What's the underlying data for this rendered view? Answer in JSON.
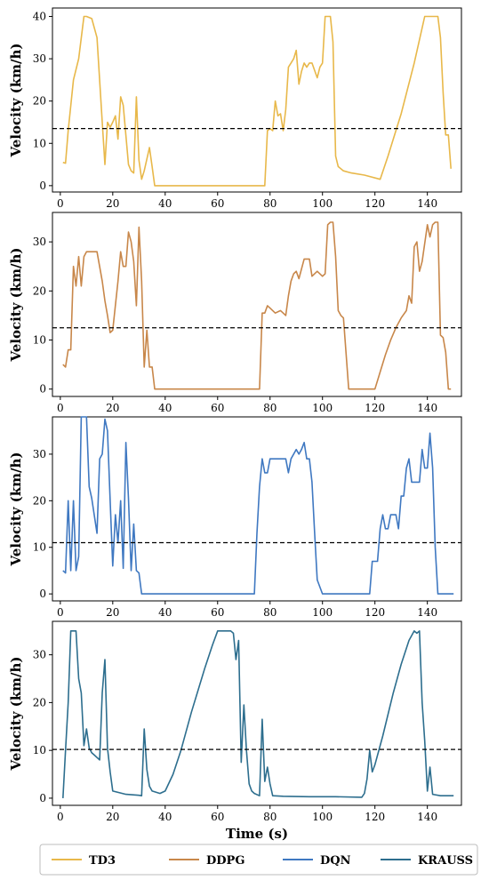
{
  "xlabel": "Time (s)",
  "legend": [
    {
      "name": "TD3",
      "color": "#e8b84a"
    },
    {
      "name": "DDPG",
      "color": "#c8874a"
    },
    {
      "name": "DQN",
      "color": "#3f78c1"
    },
    {
      "name": "KRAUSS",
      "color": "#2d6e8e"
    }
  ],
  "chart_data": [
    {
      "type": "line",
      "ylabel": "Velocity (km/h)",
      "color": "#e8b84a",
      "xlim": [
        -3,
        153
      ],
      "ylim": [
        -1.5,
        42
      ],
      "xticks": [
        0,
        20,
        40,
        60,
        80,
        100,
        120,
        140
      ],
      "yticks": [
        0,
        10,
        20,
        30,
        40
      ],
      "threshold": 13.5,
      "x": [
        1,
        2,
        3,
        5,
        7,
        9,
        10,
        12,
        14,
        16,
        17,
        18,
        19,
        20,
        21,
        22,
        23,
        24,
        26,
        27,
        28,
        29,
        30,
        31,
        32,
        34,
        35,
        36,
        40,
        50,
        60,
        70,
        78,
        79,
        80,
        81,
        82,
        83,
        84,
        85,
        86,
        87,
        88,
        89,
        90,
        91,
        92,
        93,
        94,
        95,
        96,
        98,
        99,
        100,
        101,
        102,
        103,
        104,
        105,
        106,
        108,
        111,
        116,
        122,
        125,
        130,
        135,
        139,
        141,
        143,
        144,
        145,
        146,
        147,
        148,
        149
      ],
      "y": [
        5.5,
        5.3,
        13,
        25,
        30,
        40,
        40,
        39.5,
        35,
        15,
        5,
        15,
        13.8,
        15,
        16.5,
        11,
        21,
        19,
        5,
        3.5,
        3,
        21,
        6,
        1.5,
        3.5,
        9,
        4.5,
        0,
        0,
        0,
        0,
        0,
        0,
        13,
        13.5,
        13,
        20,
        16.5,
        17,
        13,
        18,
        28,
        29,
        30,
        32,
        24,
        27,
        29,
        28,
        29,
        29,
        25.5,
        28,
        29,
        40,
        40,
        40,
        34,
        7,
        4.5,
        3.5,
        3,
        2.5,
        1.5,
        7,
        17,
        29,
        40,
        40,
        40,
        40,
        35,
        22,
        12,
        12,
        4
      ]
    },
    {
      "type": "line",
      "ylabel": "Velocity (km/h)",
      "color": "#c8874a",
      "xlim": [
        -3,
        153
      ],
      "ylim": [
        -1.5,
        36
      ],
      "xticks": [
        0,
        20,
        40,
        60,
        80,
        100,
        120,
        140
      ],
      "yticks": [
        0,
        10,
        20,
        30
      ],
      "threshold": 12.5,
      "x": [
        1,
        2,
        3,
        4,
        5,
        6,
        7,
        8,
        9,
        10,
        12,
        14,
        16,
        17,
        18,
        19,
        20,
        22,
        23,
        24,
        25,
        26,
        27,
        28,
        29,
        30,
        31,
        32,
        33,
        34,
        35,
        36,
        40,
        50,
        60,
        70,
        76,
        77,
        78,
        79,
        80,
        82,
        84,
        85,
        86,
        87,
        88,
        89,
        90,
        91,
        93,
        94,
        95,
        96,
        98,
        100,
        101,
        102,
        103,
        104,
        105,
        106,
        107,
        108,
        110,
        115,
        120,
        122,
        124,
        126,
        128,
        130,
        132,
        133,
        134,
        135,
        136,
        137,
        138,
        140,
        141,
        142,
        143,
        144,
        145,
        146,
        147,
        148,
        149
      ],
      "y": [
        5,
        4.5,
        8,
        8,
        25,
        21,
        27,
        21,
        27,
        28,
        28,
        28,
        22,
        18,
        15,
        11.5,
        12,
        22,
        28,
        25,
        25,
        32,
        30,
        26,
        17,
        33,
        22,
        4.5,
        12,
        4.5,
        4.5,
        0,
        0,
        0,
        0,
        0,
        0,
        15.5,
        15.5,
        17,
        16.5,
        15.5,
        16,
        15.5,
        15,
        19,
        22,
        23.5,
        24,
        22.5,
        26.5,
        26.5,
        26.5,
        23,
        24,
        23,
        23.5,
        33.5,
        34,
        34,
        27,
        16,
        15,
        14.5,
        0,
        0,
        0,
        3.5,
        7,
        10,
        12.5,
        14.5,
        16,
        19,
        17.5,
        29,
        30,
        24,
        26,
        33.5,
        31,
        33.5,
        34,
        34,
        11,
        10.5,
        7.5,
        0,
        0
      ]
    },
    {
      "type": "line",
      "ylabel": "Velocity (km/h)",
      "color": "#3f78c1",
      "xlim": [
        -3,
        153
      ],
      "ylim": [
        -1.5,
        38
      ],
      "xticks": [
        0,
        20,
        40,
        60,
        80,
        100,
        120,
        140
      ],
      "yticks": [
        0,
        10,
        20,
        30
      ],
      "threshold": 11,
      "x": [
        1,
        2,
        3,
        4,
        5,
        6,
        7,
        8,
        9,
        10,
        11,
        12,
        14,
        15,
        16,
        17,
        18,
        19,
        20,
        21,
        22,
        23,
        24,
        25,
        26,
        27,
        28,
        29,
        30,
        31,
        40,
        50,
        60,
        70,
        74,
        75,
        76,
        77,
        78,
        79,
        80,
        84,
        86,
        87,
        88,
        90,
        91,
        92,
        93,
        94,
        95,
        96,
        97,
        98,
        100,
        110,
        118,
        119,
        120,
        121,
        122,
        123,
        124,
        125,
        126,
        127,
        128,
        129,
        130,
        131,
        132,
        133,
        134,
        135,
        136,
        137,
        138,
        139,
        140,
        141,
        142,
        143,
        144,
        146,
        148,
        150
      ],
      "y": [
        5,
        4.5,
        20,
        5,
        20,
        5,
        8,
        38,
        38,
        38,
        23,
        20.5,
        13,
        29,
        30,
        37.5,
        35,
        20,
        6,
        17,
        11,
        20,
        5.5,
        32.5,
        20.5,
        5,
        15,
        5,
        4.5,
        0,
        0,
        0,
        0,
        0,
        0,
        13,
        23,
        29,
        26,
        26,
        29,
        29,
        29,
        26,
        29,
        31,
        30,
        31,
        32.5,
        29,
        29,
        24,
        13,
        3,
        0,
        0,
        0,
        7,
        7,
        7,
        14,
        17,
        14,
        14,
        17,
        17,
        17,
        14,
        21,
        21,
        27,
        29,
        24,
        24,
        24,
        24,
        31,
        27,
        27,
        34.5,
        27,
        10,
        0,
        0,
        0,
        0
      ]
    },
    {
      "type": "line",
      "ylabel": "Velocity (km/h)",
      "color": "#2d6e8e",
      "xlim": [
        -3,
        153
      ],
      "ylim": [
        -1.5,
        37
      ],
      "xticks": [
        0,
        20,
        40,
        60,
        80,
        100,
        120,
        140
      ],
      "yticks": [
        0,
        10,
        20,
        30
      ],
      "threshold": 10.2,
      "x": [
        1,
        2,
        3,
        4,
        5,
        6,
        7,
        8,
        9,
        10,
        11,
        12,
        13,
        14,
        15,
        16,
        17,
        18,
        19,
        20,
        25,
        30,
        31,
        32,
        33,
        34,
        35,
        38,
        40,
        43,
        46,
        50,
        55,
        58,
        60,
        63,
        65,
        66,
        67,
        68,
        69,
        70,
        71,
        72,
        73,
        74,
        76,
        77,
        78,
        79,
        80,
        81,
        85,
        95,
        105,
        115,
        116,
        117,
        118,
        119,
        120,
        123,
        127,
        130,
        133,
        135,
        136,
        137,
        138,
        139,
        140,
        141,
        142,
        145,
        150
      ],
      "y": [
        0,
        10,
        20,
        35,
        35,
        35,
        25,
        22,
        11,
        14.5,
        10.5,
        9.5,
        9,
        8.5,
        8,
        22,
        29,
        10.5,
        5.5,
        1.5,
        0.8,
        0.6,
        0.5,
        14.5,
        6,
        2.5,
        1.5,
        1,
        1.5,
        5,
        10,
        18,
        27,
        32,
        35,
        35,
        35,
        34.5,
        29,
        33,
        7.5,
        19.5,
        10,
        3,
        1.5,
        1,
        0.5,
        16.5,
        3.5,
        6.5,
        3,
        0.5,
        0.4,
        0.3,
        0.3,
        0.2,
        1,
        4,
        10,
        5.5,
        7,
        13,
        22,
        28,
        33,
        35,
        34.5,
        35,
        20,
        12,
        1.5,
        6.5,
        0.8,
        0.5,
        0.5
      ]
    }
  ]
}
